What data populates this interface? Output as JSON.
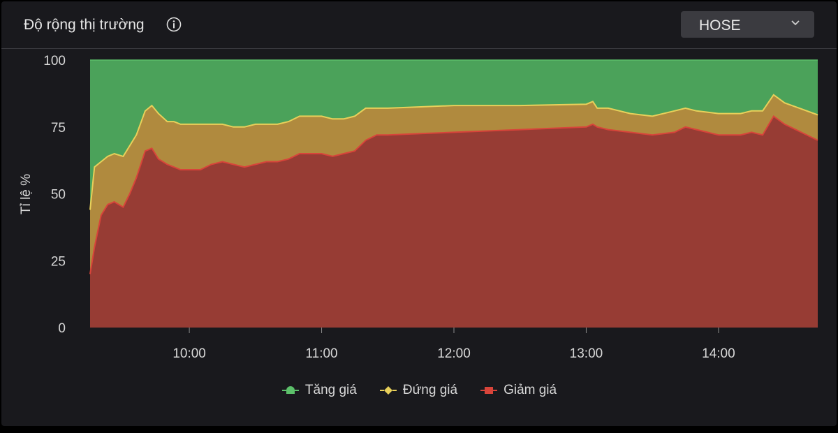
{
  "header": {
    "title": "Độ rộng thị trường",
    "info_icon": "info-circle-icon",
    "exchange_selected": "HOSE",
    "dropdown_icon": "chevron-down-icon"
  },
  "colors": {
    "up": "#4ba25a",
    "flat": "#b08a3e",
    "down": "#973c34",
    "up_line": "#5cc06a",
    "flat_line": "#e8d05a",
    "down_line": "#d8443a"
  },
  "chart_data": {
    "type": "area",
    "stacked": true,
    "ylabel": "Tỉ lệ %",
    "ylim": [
      0,
      100
    ],
    "yticks": [
      0,
      25,
      50,
      75,
      100
    ],
    "xticks": [
      "10:00",
      "11:00",
      "12:00",
      "13:00",
      "14:00"
    ],
    "xlim": [
      "09:15",
      "14:45"
    ],
    "x": [
      "09:15",
      "09:17",
      "09:20",
      "09:23",
      "09:26",
      "09:30",
      "09:33",
      "09:36",
      "09:40",
      "09:43",
      "09:46",
      "09:50",
      "09:53",
      "09:56",
      "10:00",
      "10:05",
      "10:10",
      "10:15",
      "10:20",
      "10:25",
      "10:30",
      "10:35",
      "10:40",
      "10:45",
      "10:50",
      "10:55",
      "11:00",
      "11:05",
      "11:10",
      "11:15",
      "11:20",
      "11:25",
      "11:30",
      "11:45",
      "12:00",
      "12:30",
      "13:00",
      "13:03",
      "13:05",
      "13:10",
      "13:20",
      "13:30",
      "13:40",
      "13:45",
      "13:50",
      "14:00",
      "14:10",
      "14:15",
      "14:20",
      "14:25",
      "14:30",
      "14:45"
    ],
    "series": [
      {
        "name": "Giảm giá",
        "values": [
          20,
          30,
          42,
          46,
          47,
          45,
          50,
          56,
          66,
          67,
          63,
          61,
          60,
          59,
          59,
          59,
          61,
          62,
          61,
          60,
          61,
          62,
          62,
          63,
          65,
          65,
          65,
          64,
          65,
          66,
          70,
          72,
          72,
          72.5,
          73,
          74,
          75,
          76,
          75,
          74,
          73,
          72,
          73,
          75,
          74,
          72,
          72,
          73,
          72,
          79,
          76,
          70
        ]
      },
      {
        "name": "Đứng giá",
        "values": [
          24,
          30,
          20,
          18,
          18,
          19,
          18,
          16,
          15,
          16,
          17,
          16,
          17,
          17,
          17,
          17,
          15,
          14,
          14,
          15,
          15,
          14,
          14,
          14,
          14,
          14,
          14,
          14,
          13,
          13,
          12,
          10,
          10,
          10,
          10,
          9,
          8.5,
          8.5,
          7,
          8,
          7,
          7,
          8,
          7,
          7,
          8,
          8,
          8,
          9,
          8,
          8,
          9.5
        ]
      },
      {
        "name": "Tăng giá",
        "values": [
          56,
          40,
          38,
          36,
          35,
          36,
          32,
          28,
          19,
          17,
          20,
          23,
          23,
          24,
          24,
          24,
          24,
          24,
          25,
          25,
          24,
          24,
          24,
          23,
          21,
          21,
          21,
          22,
          22,
          21,
          18,
          18,
          18,
          17.5,
          17,
          17,
          16.5,
          15.5,
          18,
          18,
          20,
          21,
          19,
          18,
          19,
          20,
          20,
          19,
          19,
          13,
          16,
          20.5
        ]
      }
    ],
    "legend": [
      "Tăng giá",
      "Đứng giá",
      "Giảm giá"
    ],
    "legend_position": "bottom-center",
    "grid": false
  }
}
